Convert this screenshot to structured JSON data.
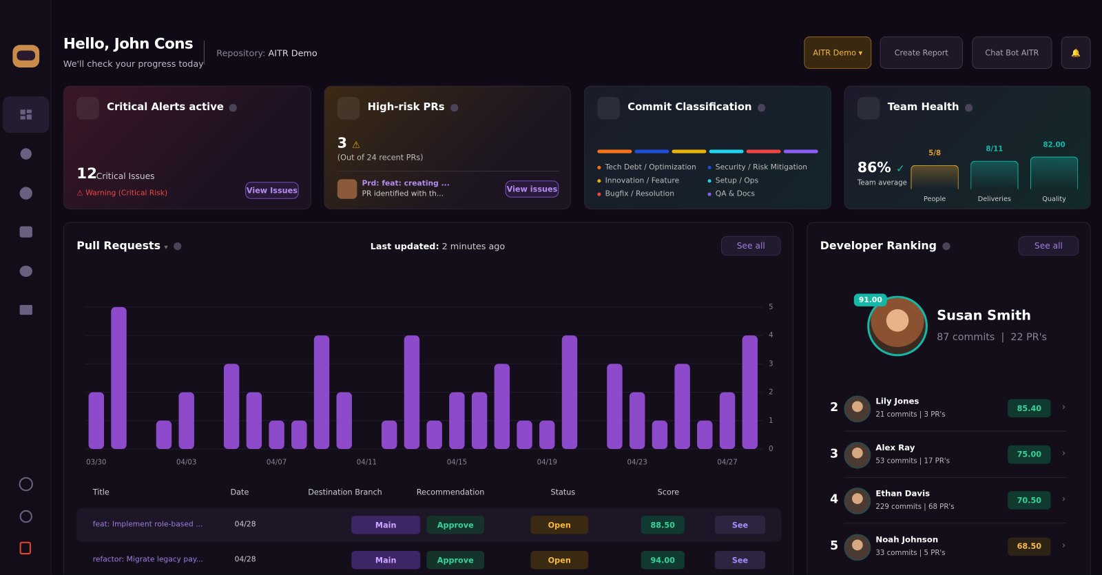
{
  "header": {
    "greeting": "Hello, John Cons",
    "subtitle": "We'll check your progress today",
    "repository_label": "Repository:",
    "repository": "AITR Demo"
  },
  "toolbar": {
    "project": "AITR Demo",
    "create_report": "Create Report",
    "chat_bot": "Chat Bot AITR"
  },
  "critical_alerts": {
    "title": "Critical Alerts active",
    "count": 12,
    "count_label": "Critical Issues",
    "warning": "Warning (Critical Risk)",
    "button": "View Issues"
  },
  "high_risk_prs": {
    "title": "High-risk PRs",
    "count": 3,
    "note": "(Out of 24 recent PRs)",
    "pr_title": "Prd: feat: creating ...",
    "pr_description": "PR identified with th...",
    "button": "View issues"
  },
  "commit_classification": {
    "title": "Commit Classification",
    "categories": [
      {
        "name": "Tech Debt / Optimization",
        "color": "#f97316"
      },
      {
        "name": "Security / Risk Mitigation",
        "color": "#1d4ed8"
      },
      {
        "name": "Innovation / Feature",
        "color": "#eab308"
      },
      {
        "name": "Setup / Ops",
        "color": "#22d3ee"
      },
      {
        "name": "Bugfix / Resolution",
        "color": "#ef4444"
      },
      {
        "name": "QA & Docs",
        "color": "#8b5cf6"
      }
    ]
  },
  "team_health": {
    "title": "Team Health",
    "score": "86%",
    "score_label": "Team average",
    "metrics": [
      {
        "name": "People",
        "value": "5/8",
        "color": "#e0a030"
      },
      {
        "name": "Deliveries",
        "value": "8/11",
        "color": "#14b8a6"
      },
      {
        "name": "Quality",
        "value": "82.00",
        "color": "#14b8a6"
      }
    ]
  },
  "pull_requests": {
    "title": "Pull Requests",
    "last_updated_label": "Last updated:",
    "last_updated": "2 minutes ago",
    "button": "See all",
    "columns": [
      "Title",
      "Date",
      "Destination Branch",
      "Recommendation",
      "Status",
      "Score"
    ],
    "rows": [
      [
        "feat: Implement role-based ...",
        "04/28",
        "Main",
        "Approve",
        "Open",
        "88.50",
        "See"
      ],
      [
        "refactor: Migrate legacy pay...",
        "04/28",
        "Main",
        "Approve",
        "Open",
        "94.00",
        "See"
      ]
    ]
  },
  "chart_data": {
    "type": "bar",
    "categories": [
      "03/30",
      null,
      null,
      null,
      "04/03",
      null,
      null,
      null,
      "04/07",
      null,
      null,
      null,
      "04/11",
      null,
      null,
      null,
      "04/15",
      null,
      null,
      null,
      "04/19",
      null,
      null,
      null,
      "04/23",
      null,
      null,
      null,
      "04/27",
      null
    ],
    "values": [
      2,
      5,
      0,
      1,
      2,
      0,
      3,
      2,
      1,
      1,
      4,
      2,
      0,
      1,
      4,
      1,
      2,
      2,
      3,
      1,
      1,
      4,
      0,
      3,
      2,
      1,
      3,
      1,
      2,
      4
    ],
    "color": "#8d4bcb",
    "ylim": [
      0,
      5
    ],
    "yticks": [
      0,
      1,
      2,
      3,
      4,
      5
    ],
    "grid": true
  },
  "developer_ranking": {
    "title": "Developer Ranking",
    "button": "See all",
    "leader": {
      "score": "91.00",
      "name": "Susan Smith",
      "commits": "87 commits",
      "prs": "22 PR's"
    },
    "ranks": [
      {
        "rank": 2,
        "name": "Lily Jones",
        "stats": "21 commits | 3 PR's",
        "score": "85.40"
      },
      {
        "rank": 3,
        "name": "Alex Ray",
        "stats": "53 commits | 17 PR's",
        "score": "75.00"
      },
      {
        "rank": 4,
        "name": "Ethan Davis",
        "stats": "229 commits | 68 PR's",
        "score": "70.50"
      },
      {
        "rank": 5,
        "name": "Noah Johnson",
        "stats": "33 commits | 5 PR's",
        "score": "68.50"
      }
    ]
  }
}
